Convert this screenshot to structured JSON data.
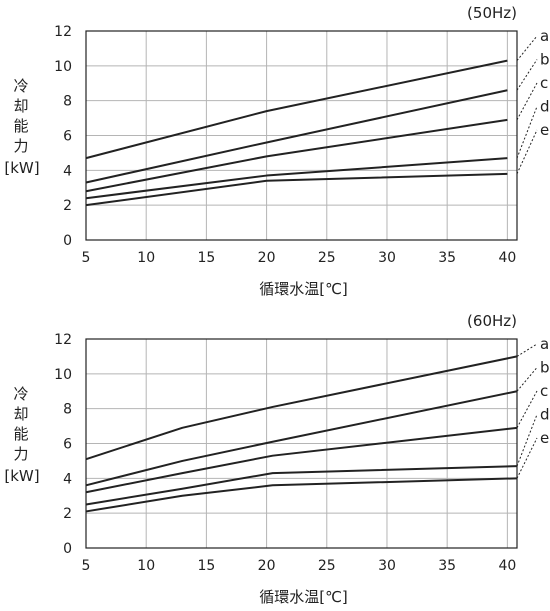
{
  "chart_data": [
    {
      "type": "line",
      "title": "(50Hz)",
      "xlabel": "循環水温[℃]",
      "ylabel": [
        "冷",
        "却",
        "能",
        "力",
        "[kW]"
      ],
      "x": [
        5,
        20,
        40
      ],
      "xticks": [
        5,
        10,
        15,
        20,
        25,
        30,
        35,
        40
      ],
      "yticks": [
        0,
        2,
        4,
        6,
        8,
        10,
        12
      ],
      "xlim": [
        5,
        40.8
      ],
      "ylim": [
        0,
        12
      ],
      "grid": true,
      "series": [
        {
          "name": "a",
          "values": [
            4.7,
            7.4,
            10.3
          ]
        },
        {
          "name": "b",
          "values": [
            3.3,
            5.6,
            8.6
          ]
        },
        {
          "name": "c",
          "values": [
            2.8,
            4.8,
            6.9
          ]
        },
        {
          "name": "d",
          "values": [
            2.4,
            3.7,
            4.7
          ]
        },
        {
          "name": "e",
          "values": [
            2.0,
            3.4,
            3.8
          ]
        }
      ]
    },
    {
      "type": "line",
      "title": "(60Hz)",
      "xlabel": "循環水温[℃]",
      "ylabel": [
        "冷",
        "却",
        "能",
        "力",
        "[kW]"
      ],
      "x": [
        5,
        13,
        20.5,
        40.8
      ],
      "xticks": [
        5,
        10,
        15,
        20,
        25,
        30,
        35,
        40
      ],
      "yticks": [
        0,
        2,
        4,
        6,
        8,
        10,
        12
      ],
      "xlim": [
        5,
        40.8
      ],
      "ylim": [
        0,
        12
      ],
      "grid": true,
      "series": [
        {
          "name": "a",
          "values": [
            5.1,
            6.9,
            8.1,
            11.0
          ]
        },
        {
          "name": "b",
          "values": [
            3.6,
            5.0,
            6.1,
            9.0
          ]
        },
        {
          "name": "c",
          "values": [
            3.2,
            4.3,
            5.3,
            6.9
          ]
        },
        {
          "name": "d",
          "values": [
            2.5,
            3.4,
            4.3,
            4.7
          ]
        },
        {
          "name": "e",
          "values": [
            2.1,
            3.0,
            3.6,
            4.0
          ]
        }
      ]
    }
  ]
}
